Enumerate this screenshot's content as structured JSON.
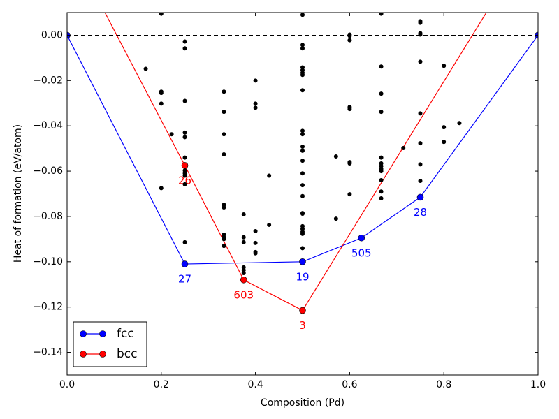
{
  "chart_data": {
    "type": "line",
    "xlabel": "Composition (Pd)",
    "ylabel": "Heat of formation (eV/atom)",
    "xlim": [
      0,
      1
    ],
    "ylim": [
      -0.15,
      0.01
    ],
    "xticks": [
      {
        "value": 0,
        "label": "0.0"
      },
      0.2,
      0.4,
      0.6,
      0.8,
      {
        "value": 1,
        "label": "1.0"
      }
    ],
    "yticks": [
      {
        "value": 0,
        "label": "0.00"
      },
      {
        "value": -0.02,
        "label": "−0.02"
      },
      {
        "value": -0.04,
        "label": "−0.04"
      },
      {
        "value": -0.06,
        "label": "−0.06"
      },
      {
        "value": -0.08,
        "label": "−0.08"
      },
      {
        "value": -0.1,
        "label": "−0.10"
      },
      {
        "value": -0.12,
        "label": "−0.12"
      },
      {
        "value": -0.14,
        "label": "−0.14"
      }
    ],
    "hline": 0,
    "legend": "lower left",
    "series": [
      {
        "name": "fcc",
        "color": "#0000ff",
        "x": [
          0,
          0.25,
          0.5,
          0.625,
          0.75,
          1
        ],
        "values": [
          0,
          -0.101,
          -0.1,
          -0.0895,
          -0.0715,
          0
        ],
        "labels": [
          null,
          "27",
          "19",
          "505",
          "28",
          null
        ]
      },
      {
        "name": "bcc",
        "color": "#ff0000",
        "x": [
          0,
          0.25,
          0.375,
          0.5,
          1
        ],
        "values": [
          0.042,
          -0.0575,
          -0.108,
          -0.1215,
          0.047
        ],
        "labels": [
          null,
          "26",
          "603",
          "3",
          null
        ]
      },
      {
        "color": "#000000",
        "line": false,
        "x": [
          0.2,
          0.2,
          0.2,
          0.2,
          0.2,
          0.167,
          0.222,
          0.25,
          0.25,
          0.25,
          0.25,
          0.25,
          0.25,
          0.25,
          0.25,
          0.25,
          0.25,
          0.25,
          0.333,
          0.333,
          0.333,
          0.333,
          0.333,
          0.333,
          0.333,
          0.333,
          0.333,
          0.333,
          0.375,
          0.375,
          0.375,
          0.375,
          0.375,
          0.375,
          0.4,
          0.4,
          0.4,
          0.4,
          0.4,
          0.4,
          0.4,
          0.429,
          0.429,
          0.5,
          0.5,
          0.5,
          0.5,
          0.5,
          0.5,
          0.5,
          0.5,
          0.5,
          0.5,
          0.5,
          0.5,
          0.5,
          0.5,
          0.5,
          0.5,
          0.5,
          0.5,
          0.5,
          0.5,
          0.5,
          0.5,
          0.5,
          0.571,
          0.571,
          0.6,
          0.6,
          0.6,
          0.6,
          0.6,
          0.6,
          0.6,
          0.6,
          0.667,
          0.667,
          0.667,
          0.667,
          0.667,
          0.667,
          0.667,
          0.667,
          0.667,
          0.667,
          0.667,
          0.667,
          0.714,
          0.75,
          0.75,
          0.75,
          0.75,
          0.75,
          0.75,
          0.75,
          0.75,
          0.75,
          0.8,
          0.8,
          0.8,
          0.833
        ],
        "values": [
          0.0095,
          -0.0249,
          -0.0255,
          -0.0302,
          -0.0675,
          -0.0148,
          -0.0437,
          -0.0028,
          -0.0058,
          -0.029,
          -0.043,
          -0.045,
          -0.054,
          -0.0597,
          -0.061,
          -0.062,
          -0.0658,
          -0.0914,
          -0.0249,
          -0.0338,
          -0.0437,
          -0.0526,
          -0.0748,
          -0.076,
          -0.088,
          -0.0892,
          -0.09,
          -0.093,
          -0.0791,
          -0.0892,
          -0.0914,
          -0.1025,
          -0.1037,
          -0.105,
          -0.02,
          -0.0302,
          -0.032,
          -0.0865,
          -0.0917,
          -0.0957,
          -0.0963,
          -0.062,
          -0.0837,
          0.009,
          -0.0043,
          -0.0058,
          -0.0142,
          -0.0154,
          -0.0166,
          -0.0175,
          -0.0243,
          -0.0422,
          -0.0437,
          -0.0492,
          -0.051,
          -0.0554,
          -0.061,
          -0.0662,
          -0.071,
          -0.0785,
          -0.0788,
          -0.0843,
          -0.0855,
          -0.0868,
          -0.0877,
          -0.094,
          -0.0535,
          -0.081,
          0.0003,
          -0.0003,
          -0.0022,
          -0.0317,
          -0.0326,
          -0.056,
          -0.0566,
          -0.0702,
          0.0095,
          -0.0138,
          -0.0258,
          -0.0338,
          -0.054,
          -0.0566,
          -0.0578,
          -0.059,
          -0.06,
          -0.064,
          -0.069,
          -0.072,
          -0.0498,
          0.0062,
          0.0055,
          0.0009,
          0.0003,
          -0.0117,
          -0.0345,
          -0.0477,
          -0.057,
          -0.0643,
          -0.0135,
          -0.0406,
          -0.0471,
          -0.0388
        ]
      }
    ]
  }
}
